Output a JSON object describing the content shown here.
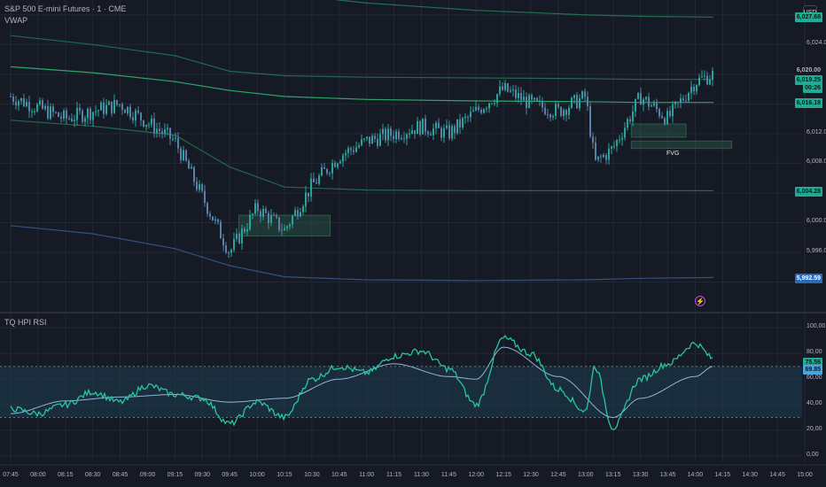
{
  "header": {
    "symbol_title": "S&P 500 E-mini Futures · 1 · CME",
    "indicator_label": "VWAP",
    "currency_button": "USD"
  },
  "rsi_panel": {
    "title": "TQ HPI RSI"
  },
  "fvg_label": "FVG",
  "price_axis": {
    "ticks": [
      {
        "label": "6,024.00",
        "price": 6024
      },
      {
        "label": "6,012.00",
        "price": 6012
      },
      {
        "label": "6,008.00",
        "price": 6008
      },
      {
        "label": "6,000.00",
        "price": 6000
      },
      {
        "label": "5,996.00",
        "price": 5996
      }
    ],
    "tags": [
      {
        "label": "6,027.68",
        "price": 6027.68,
        "bg": "#22ab94",
        "fg": "#0b1a14"
      },
      {
        "label": "6,020.00",
        "price": 6020.6,
        "bg": "#161a25",
        "fg": "#b2b5be"
      },
      {
        "label": "6,019.25",
        "price": 6019.25,
        "bg": "#22ab94",
        "fg": "#0b1a14"
      },
      {
        "label": "00:26",
        "price": 6018.2,
        "bg": "#22ab94",
        "fg": "#0b1a14"
      },
      {
        "label": "6,016.18",
        "price": 6016.18,
        "bg": "#22ab94",
        "fg": "#0b1a14"
      },
      {
        "label": "6,004.28",
        "price": 6004.28,
        "bg": "#22ab94",
        "fg": "#0b1a14"
      },
      {
        "label": "5,992.59",
        "price": 5992.59,
        "bg": "#2a6ab8",
        "fg": "#ffffff"
      }
    ]
  },
  "rsi_axis": {
    "ticks": [
      {
        "label": "100,00",
        "value": 100
      },
      {
        "label": "80,00",
        "value": 80
      },
      {
        "label": "60,00",
        "value": 60
      },
      {
        "label": "40,00",
        "value": 40
      },
      {
        "label": "20,00",
        "value": 20
      },
      {
        "label": "0,00",
        "value": 0
      }
    ],
    "tags": [
      {
        "label": "75.56",
        "value": 73.5,
        "bg": "#22ab94",
        "fg": "#0b1a14"
      },
      {
        "label": "69.85",
        "value": 67.8,
        "bg": "#4aa3df",
        "fg": "#0b1a14"
      }
    ]
  },
  "time_axis": [
    "07:45",
    "08:00",
    "08:15",
    "08:30",
    "08:45",
    "09:00",
    "09:15",
    "09:30",
    "09:45",
    "10:00",
    "10:15",
    "10:30",
    "10:45",
    "11:00",
    "11:15",
    "11:30",
    "11:45",
    "12:00",
    "12:15",
    "12:30",
    "12:45",
    "13:00",
    "13:15",
    "13:30",
    "13:45",
    "14:00",
    "14:15",
    "14:30",
    "14:45",
    "15:00"
  ],
  "colors": {
    "background": "#161a25",
    "grid": "#232834",
    "up": "#26a69a",
    "down": "#5b7fa6",
    "vwap": "#2bb673",
    "lower_band": "#3e6aa0",
    "rsi": "#26c6a0",
    "rsi_ma": "#8fb6dc",
    "rsi_zone": "#1e3a4c"
  },
  "chart_data": {
    "type": "line",
    "price_series": {
      "name": "",
      "times": [
        "07:45",
        "08:15",
        "08:45",
        "09:15",
        "09:45",
        "10:00",
        "10:15",
        "10:30",
        "10:45",
        "11:00",
        "11:15",
        "11:30",
        "11:45",
        "12:00",
        "12:15",
        "12:30",
        "12:45",
        "13:00",
        "13:05",
        "13:15",
        "13:30",
        "13:45",
        "14:00",
        "14:10"
      ],
      "values": [
        6017,
        6014,
        6016,
        6011,
        5996,
        6002,
        5999,
        6005,
        6009,
        6011,
        6012,
        6013,
        6012,
        6015,
        6018,
        6016,
        6015,
        6017,
        6008,
        6010,
        6017,
        6014,
        6019,
        6020
      ]
    },
    "rsi_series": {
      "times": [
        "07:45",
        "08:00",
        "08:15",
        "08:30",
        "08:45",
        "09:00",
        "09:15",
        "09:30",
        "09:45",
        "10:00",
        "10:15",
        "10:30",
        "10:45",
        "11:00",
        "11:15",
        "11:30",
        "11:45",
        "12:00",
        "12:15",
        "12:30",
        "12:45",
        "13:00",
        "13:05",
        "13:15",
        "13:30",
        "13:45",
        "14:00",
        "14:10"
      ],
      "values": [
        37,
        33,
        40,
        50,
        42,
        55,
        48,
        45,
        25,
        42,
        30,
        60,
        70,
        65,
        78,
        82,
        68,
        40,
        92,
        80,
        52,
        35,
        70,
        22,
        60,
        72,
        88,
        76
      ]
    },
    "rsi_ma_series": {
      "times": [
        "07:45",
        "08:15",
        "08:45",
        "09:15",
        "09:45",
        "10:15",
        "10:45",
        "11:15",
        "11:45",
        "12:00",
        "12:15",
        "12:45",
        "13:15",
        "13:30",
        "14:00",
        "14:10"
      ],
      "values": [
        33,
        43,
        46,
        48,
        42,
        45,
        60,
        72,
        62,
        60,
        85,
        62,
        30,
        45,
        62,
        70
      ]
    },
    "rsi_levels": {
      "upper": 70,
      "lower": 30
    },
    "ylim_price": [
      5988,
      6030
    ],
    "ylim_rsi": [
      -5,
      110
    ]
  }
}
